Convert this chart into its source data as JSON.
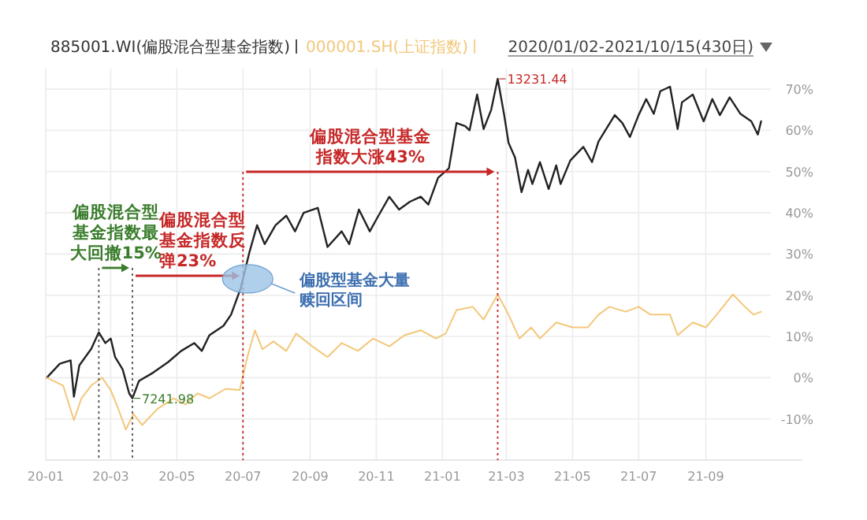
{
  "chart_data": {
    "type": "line",
    "subtitle": "2020/01/02-2021/10/15(430日)",
    "legend": "top left",
    "grid": true,
    "xlim": [
      "2020-01-01",
      "2021-10-31"
    ],
    "ylim": [
      -20,
      75
    ],
    "xticks": [
      {
        "value": "2020-01-01",
        "label": "20-01"
      },
      {
        "value": "2020-03-01",
        "label": "20-03"
      },
      {
        "value": "2020-05-01",
        "label": "20-05"
      },
      {
        "value": "2020-07-01",
        "label": "20-07"
      },
      {
        "value": "2020-09-01",
        "label": "20-09"
      },
      {
        "value": "2020-11-01",
        "label": "20-11"
      },
      {
        "value": "2021-01-01",
        "label": "21-01"
      },
      {
        "value": "2021-03-01",
        "label": "21-03"
      },
      {
        "value": "2021-05-01",
        "label": "21-05"
      },
      {
        "value": "2021-07-01",
        "label": "21-07"
      },
      {
        "value": "2021-09-01",
        "label": "21-09"
      }
    ],
    "yticks": [
      {
        "value": 70,
        "label": "70%"
      },
      {
        "value": 60,
        "label": "60%"
      },
      {
        "value": 50,
        "label": "50%"
      },
      {
        "value": 40,
        "label": "40%"
      },
      {
        "value": 30,
        "label": "30%"
      },
      {
        "value": 20,
        "label": "20%"
      },
      {
        "value": 10,
        "label": "10%"
      },
      {
        "value": 0,
        "label": "0%"
      },
      {
        "value": -10,
        "label": "-10%"
      }
    ],
    "series": [
      {
        "name": "885001.WI(偏股混合型基金指数)",
        "color": "#222222",
        "x": [
          "2020-01-02",
          "2020-01-14",
          "2020-01-24",
          "2020-01-27",
          "2020-02-01",
          "2020-02-12",
          "2020-02-19",
          "2020-02-25",
          "2020-03-01",
          "2020-03-05",
          "2020-03-12",
          "2020-03-18",
          "2020-03-21",
          "2020-03-27",
          "2020-04-09",
          "2020-04-23",
          "2020-05-05",
          "2020-05-17",
          "2020-05-24",
          "2020-05-31",
          "2020-06-13",
          "2020-06-20",
          "2020-06-29",
          "2020-07-07",
          "2020-07-14",
          "2020-07-21",
          "2020-07-31",
          "2020-08-10",
          "2020-08-18",
          "2020-08-26",
          "2020-09-08",
          "2020-09-17",
          "2020-09-30",
          "2020-10-07",
          "2020-10-16",
          "2020-10-26",
          "2020-11-03",
          "2020-11-13",
          "2020-11-22",
          "2020-12-02",
          "2020-12-12",
          "2020-12-19",
          "2020-12-28",
          "2021-01-07",
          "2021-01-14",
          "2021-01-22",
          "2021-01-26",
          "2021-02-02",
          "2021-02-08",
          "2021-02-15",
          "2021-02-21",
          "2021-02-27",
          "2021-03-03",
          "2021-03-09",
          "2021-03-15",
          "2021-03-21",
          "2021-03-25",
          "2021-04-01",
          "2021-04-09",
          "2021-04-16",
          "2021-04-20",
          "2021-04-29",
          "2021-05-11",
          "2021-05-19",
          "2021-05-25",
          "2021-06-01",
          "2021-06-09",
          "2021-06-16",
          "2021-06-23",
          "2021-07-01",
          "2021-07-08",
          "2021-07-15",
          "2021-07-21",
          "2021-07-30",
          "2021-08-06",
          "2021-08-10",
          "2021-08-20",
          "2021-08-30",
          "2021-09-07",
          "2021-09-14",
          "2021-09-23",
          "2021-10-03",
          "2021-10-13",
          "2021-10-19",
          "2021-10-22"
        ],
        "values": [
          0,
          3.4,
          4.2,
          -4.6,
          3,
          7,
          11,
          8.4,
          9.5,
          5,
          2,
          -3.8,
          -5,
          -0.8,
          1.2,
          3.8,
          6.5,
          8.4,
          6.5,
          10.3,
          12.6,
          15.3,
          21.8,
          30.5,
          37,
          32.4,
          37,
          39.3,
          35.5,
          40,
          41.2,
          31.7,
          35.5,
          32.4,
          40.8,
          35.5,
          39.3,
          43.9,
          40.8,
          42.7,
          43.9,
          42,
          48.5,
          50.8,
          61.8,
          61,
          60,
          68.7,
          60.3,
          65,
          72.5,
          63.7,
          57,
          53.4,
          45,
          50.4,
          47,
          52.3,
          45.8,
          51.5,
          47,
          52.7,
          56,
          52.3,
          57.3,
          60.3,
          63.7,
          61.8,
          58.4,
          63.7,
          67.6,
          64,
          69.5,
          70.6,
          60.3,
          66.8,
          68.7,
          62.2,
          67.6,
          63.7,
          68,
          64,
          62.2,
          59,
          62.2
        ]
      },
      {
        "name": "000001.SH(上证指数)",
        "color": "#f3c77a",
        "x": [
          "2020-01-02",
          "2020-01-17",
          "2020-01-27",
          "2020-02-03",
          "2020-02-12",
          "2020-02-22",
          "2020-03-01",
          "2020-03-08",
          "2020-03-15",
          "2020-03-22",
          "2020-03-30",
          "2020-04-13",
          "2020-04-28",
          "2020-05-09",
          "2020-05-20",
          "2020-05-31",
          "2020-06-15",
          "2020-06-28",
          "2020-07-05",
          "2020-07-12",
          "2020-07-19",
          "2020-07-29",
          "2020-08-10",
          "2020-08-19",
          "2020-09-03",
          "2020-09-17",
          "2020-09-30",
          "2020-10-15",
          "2020-10-29",
          "2020-11-13",
          "2020-11-27",
          "2020-12-12",
          "2020-12-26",
          "2021-01-04",
          "2021-01-14",
          "2021-01-29",
          "2021-02-08",
          "2021-02-21",
          "2021-03-03",
          "2021-03-13",
          "2021-03-24",
          "2021-04-01",
          "2021-04-16",
          "2021-05-01",
          "2021-05-15",
          "2021-05-25",
          "2021-06-04",
          "2021-06-19",
          "2021-07-01",
          "2021-07-12",
          "2021-07-30",
          "2021-08-06",
          "2021-08-20",
          "2021-09-01",
          "2021-09-11",
          "2021-09-26",
          "2021-10-07",
          "2021-10-15",
          "2021-10-22"
        ],
        "values": [
          0,
          -1.9,
          -10.3,
          -5,
          -1.9,
          0,
          -3,
          -7.6,
          -12.6,
          -8.8,
          -11.5,
          -7.6,
          -5,
          -6.5,
          -3.8,
          -5,
          -2.7,
          -3,
          5,
          11.5,
          6.9,
          8.8,
          6.5,
          10.7,
          7.6,
          5,
          8.4,
          6.5,
          9.5,
          7.6,
          10.3,
          11.5,
          9.5,
          10.7,
          16.4,
          17.2,
          14.1,
          20.2,
          15.3,
          9.5,
          12.2,
          9.5,
          13.4,
          12.2,
          12.2,
          15.3,
          17.2,
          16,
          17.2,
          15.3,
          15.3,
          10.3,
          13.4,
          12.2,
          15.3,
          20.2,
          17.2,
          15.3,
          16
        ]
      }
    ],
    "ref_lines": [
      {
        "axis": "x",
        "value": "2020-02-19",
        "color": "#555555",
        "line_style": "dotted"
      },
      {
        "axis": "x",
        "value": "2020-03-21",
        "color": "#555555",
        "line_style": "dotted"
      },
      {
        "axis": "x",
        "value": "2020-07-01",
        "color": "#c62828",
        "line_style": "dotted"
      },
      {
        "axis": "x",
        "value": "2021-02-21",
        "color": "#c62828",
        "line_style": "dotted"
      }
    ],
    "annotations": [
      "偏股混合型基金指数最大回撤15%",
      "偏股混合型基金指数反弹23%",
      "偏股混合型基金指数大涨43%",
      "偏股型基金大量赎回区间",
      {
        "text": "13231.44",
        "x": "2021-02-21",
        "y": 72.5
      },
      {
        "text": "7241.98",
        "x": "2020-03-21",
        "y": -5
      }
    ]
  }
}
